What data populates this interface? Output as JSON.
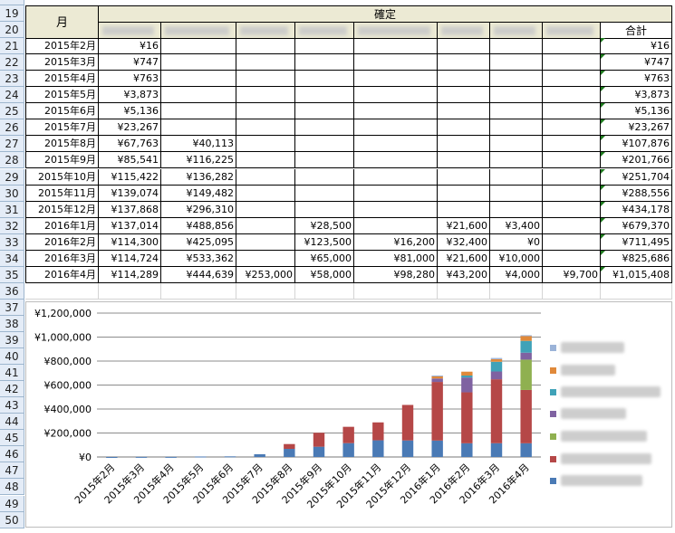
{
  "row_numbers": [
    "19",
    "20",
    "21",
    "22",
    "23",
    "24",
    "25",
    "26",
    "27",
    "28",
    "29",
    "30",
    "31",
    "32",
    "33",
    "34",
    "35",
    "36",
    "37",
    "38",
    "39",
    "40",
    "41",
    "42",
    "43",
    "44",
    "45",
    "46",
    "47",
    "48",
    "49",
    "50"
  ],
  "header": {
    "month_label": "月",
    "confirmed_label": "確定",
    "total_label": "合計"
  },
  "rows": [
    {
      "month": "2015年2月",
      "c1": "¥16",
      "c2": "",
      "c3": "",
      "c4": "",
      "c5": "",
      "c6": "",
      "c7": "",
      "c8": "",
      "total": "¥16"
    },
    {
      "month": "2015年3月",
      "c1": "¥747",
      "c2": "",
      "c3": "",
      "c4": "",
      "c5": "",
      "c6": "",
      "c7": "",
      "c8": "",
      "total": "¥747"
    },
    {
      "month": "2015年4月",
      "c1": "¥763",
      "c2": "",
      "c3": "",
      "c4": "",
      "c5": "",
      "c6": "",
      "c7": "",
      "c8": "",
      "total": "¥763"
    },
    {
      "month": "2015年5月",
      "c1": "¥3,873",
      "c2": "",
      "c3": "",
      "c4": "",
      "c5": "",
      "c6": "",
      "c7": "",
      "c8": "",
      "total": "¥3,873"
    },
    {
      "month": "2015年6月",
      "c1": "¥5,136",
      "c2": "",
      "c3": "",
      "c4": "",
      "c5": "",
      "c6": "",
      "c7": "",
      "c8": "",
      "total": "¥5,136"
    },
    {
      "month": "2015年7月",
      "c1": "¥23,267",
      "c2": "",
      "c3": "",
      "c4": "",
      "c5": "",
      "c6": "",
      "c7": "",
      "c8": "",
      "total": "¥23,267"
    },
    {
      "month": "2015年8月",
      "c1": "¥67,763",
      "c2": "¥40,113",
      "c3": "",
      "c4": "",
      "c5": "",
      "c6": "",
      "c7": "",
      "c8": "",
      "total": "¥107,876"
    },
    {
      "month": "2015年9月",
      "c1": "¥85,541",
      "c2": "¥116,225",
      "c3": "",
      "c4": "",
      "c5": "",
      "c6": "",
      "c7": "",
      "c8": "",
      "total": "¥201,766"
    },
    {
      "month": "2015年10月",
      "c1": "¥115,422",
      "c2": "¥136,282",
      "c3": "",
      "c4": "",
      "c5": "",
      "c6": "",
      "c7": "",
      "c8": "",
      "total": "¥251,704"
    },
    {
      "month": "2015年11月",
      "c1": "¥139,074",
      "c2": "¥149,482",
      "c3": "",
      "c4": "",
      "c5": "",
      "c6": "",
      "c7": "",
      "c8": "",
      "total": "¥288,556"
    },
    {
      "month": "2015年12月",
      "c1": "¥137,868",
      "c2": "¥296,310",
      "c3": "",
      "c4": "",
      "c5": "",
      "c6": "",
      "c7": "",
      "c8": "",
      "total": "¥434,178"
    },
    {
      "month": "2016年1月",
      "c1": "¥137,014",
      "c2": "¥488,856",
      "c3": "",
      "c4": "¥28,500",
      "c5": "",
      "c6": "¥21,600",
      "c7": "¥3,400",
      "c8": "",
      "total": "¥679,370"
    },
    {
      "month": "2016年2月",
      "c1": "¥114,300",
      "c2": "¥425,095",
      "c3": "",
      "c4": "¥123,500",
      "c5": "¥16,200",
      "c6": "¥32,400",
      "c7": "¥0",
      "c8": "",
      "total": "¥711,495"
    },
    {
      "month": "2016年3月",
      "c1": "¥114,724",
      "c2": "¥533,362",
      "c3": "",
      "c4": "¥65,000",
      "c5": "¥81,000",
      "c6": "¥21,600",
      "c7": "¥10,000",
      "c8": "",
      "total": "¥825,686"
    },
    {
      "month": "2016年4月",
      "c1": "¥114,289",
      "c2": "¥444,639",
      "c3": "¥253,000",
      "c4": "¥58,000",
      "c5": "¥98,280",
      "c6": "¥43,200",
      "c7": "¥4,000",
      "c8": "¥9,700",
      "total": "¥1,015,408"
    }
  ],
  "chart_data": {
    "type": "bar",
    "stacked": true,
    "categories": [
      "2015年2月",
      "2015年3月",
      "2015年4月",
      "2015年5月",
      "2015年6月",
      "2015年7月",
      "2015年8月",
      "2015年9月",
      "2015年10月",
      "2015年11月",
      "2015年12月",
      "2016年1月",
      "2016年2月",
      "2016年3月",
      "2016年4月"
    ],
    "series": [
      {
        "color": "#4a7ab5",
        "values": [
          16,
          747,
          763,
          3873,
          5136,
          23267,
          67763,
          85541,
          115422,
          139074,
          137868,
          137014,
          114300,
          114724,
          114289
        ]
      },
      {
        "color": "#b54747",
        "values": [
          0,
          0,
          0,
          0,
          0,
          0,
          40113,
          116225,
          136282,
          149482,
          296310,
          488856,
          425095,
          533362,
          444639
        ]
      },
      {
        "color": "#8fb050",
        "values": [
          0,
          0,
          0,
          0,
          0,
          0,
          0,
          0,
          0,
          0,
          0,
          0,
          0,
          0,
          253000
        ]
      },
      {
        "color": "#7f62a1",
        "values": [
          0,
          0,
          0,
          0,
          0,
          0,
          0,
          0,
          0,
          0,
          0,
          28500,
          123500,
          65000,
          58000
        ]
      },
      {
        "color": "#3fa2b8",
        "values": [
          0,
          0,
          0,
          0,
          0,
          0,
          0,
          0,
          0,
          0,
          0,
          0,
          16200,
          81000,
          98280
        ]
      },
      {
        "color": "#e0893a",
        "values": [
          0,
          0,
          0,
          0,
          0,
          0,
          0,
          0,
          0,
          0,
          0,
          21600,
          32400,
          21600,
          43200
        ]
      },
      {
        "color": "#9bb3d8",
        "values": [
          0,
          0,
          0,
          0,
          0,
          0,
          0,
          0,
          0,
          0,
          0,
          3400,
          0,
          10000,
          4000
        ]
      }
    ],
    "y_ticks": [
      "¥0",
      "¥200,000",
      "¥400,000",
      "¥600,000",
      "¥800,000",
      "¥1,000,000",
      "¥1,200,000"
    ],
    "ylim": [
      0,
      1200000
    ],
    "grid": true,
    "legend": "right"
  }
}
